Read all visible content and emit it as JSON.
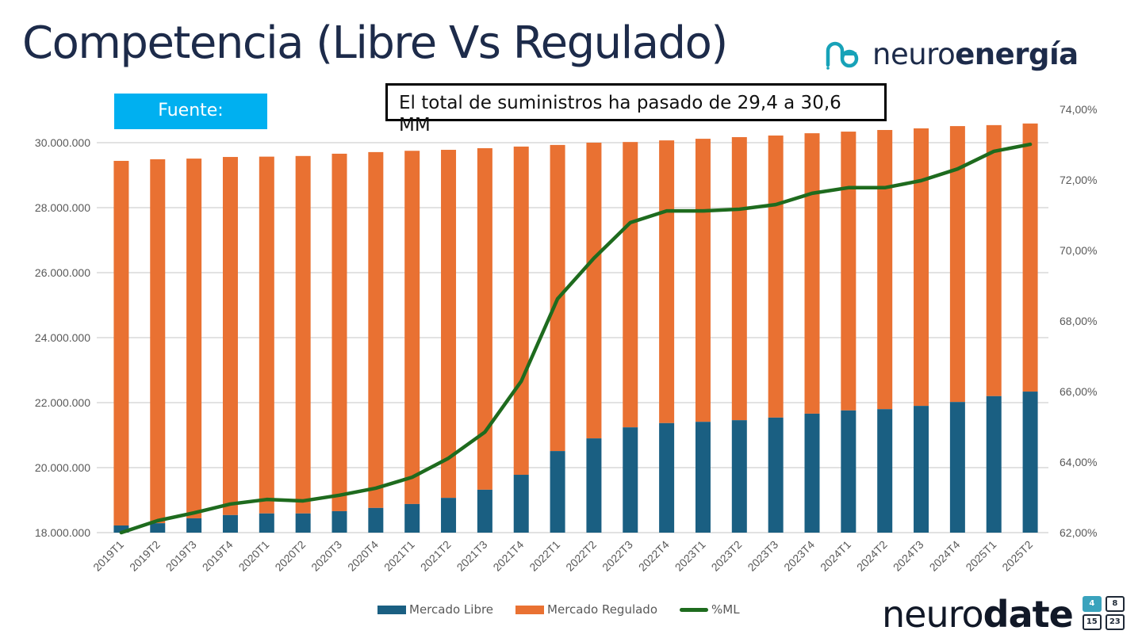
{
  "page": {
    "title": "Competencia (Libre Vs Regulado)",
    "source_label": "Fuente:",
    "note": "El total de suministros ha pasado de 29,4 a 30,6 MM",
    "brand_top": {
      "light": "neuro",
      "bold": "energía",
      "icon": "ne-logo-icon"
    },
    "brand_bottom": {
      "light": "neuro",
      "bold": "date",
      "calendar_days": [
        "4",
        "8",
        "15",
        "23"
      ],
      "icon": "calendar-icon"
    }
  },
  "colors": {
    "libre": "#1a5f82",
    "regulado": "#e97132",
    "pct_line": "#1e6b1e",
    "title": "#1d2b4a",
    "source_bg": "#00b0f0",
    "logo_teal": "#17a2b8",
    "grid": "#d9d9d9",
    "axis_text": "#595959"
  },
  "chart_data": {
    "type": "bar",
    "subtype": "stacked-bar-with-line-secondary-axis",
    "title": "Competencia (Libre Vs Regulado)",
    "xlabel": "",
    "ylabel": "",
    "y2label": "",
    "categories": [
      "2019T1",
      "2019T2",
      "2019T3",
      "2019T4",
      "2020T1",
      "2020T2",
      "2020T3",
      "2020T4",
      "2021T1",
      "2021T2",
      "2021T3",
      "2021T4",
      "2022T1",
      "2022T2",
      "2022T3",
      "2022T4",
      "2023T1",
      "2023T2",
      "2023T3",
      "2023T4",
      "2024T1",
      "2024T2",
      "2024T3",
      "2024T4",
      "2025T1",
      "2025T2"
    ],
    "series": [
      {
        "name": "Mercado Libre",
        "type": "bar",
        "axis": "left",
        "values": [
          18220000,
          18290000,
          18440000,
          18540000,
          18590000,
          18590000,
          18660000,
          18760000,
          18880000,
          19070000,
          19320000,
          19780000,
          20510000,
          20900000,
          21240000,
          21370000,
          21410000,
          21460000,
          21540000,
          21660000,
          21760000,
          21800000,
          21900000,
          22020000,
          22200000,
          22340000
        ]
      },
      {
        "name": "Mercado Regulado",
        "type": "bar",
        "axis": "left",
        "stacked_on": "Mercado Libre",
        "totals": [
          29440000,
          29490000,
          29510000,
          29560000,
          29570000,
          29590000,
          29660000,
          29710000,
          29750000,
          29780000,
          29830000,
          29880000,
          29930000,
          30000000,
          30020000,
          30070000,
          30120000,
          30170000,
          30220000,
          30290000,
          30340000,
          30390000,
          30440000,
          30510000,
          30540000,
          30590000
        ]
      },
      {
        "name": "%ML",
        "type": "line",
        "axis": "right",
        "values": [
          62.0,
          62.34,
          62.56,
          62.81,
          62.94,
          62.9,
          63.06,
          63.26,
          63.57,
          64.11,
          64.85,
          66.29,
          68.63,
          69.78,
          70.79,
          71.12,
          71.12,
          71.17,
          71.3,
          71.62,
          71.78,
          71.78,
          71.98,
          72.31,
          72.81,
          73.01
        ]
      }
    ],
    "ylim": [
      18000000,
      30000000
    ],
    "y2lim": [
      62,
      74
    ],
    "yticks": [
      "18.000.000",
      "20.000.000",
      "22.000.000",
      "24.000.000",
      "26.000.000",
      "28.000.000",
      "30.000.000"
    ],
    "y2ticks": [
      "62,00%",
      "64,00%",
      "66,00%",
      "68,00%",
      "70,00%",
      "72,00%",
      "74,00%"
    ],
    "grid": true,
    "legend": {
      "placement": "bottom",
      "entries": [
        "Mercado Libre",
        "Mercado Regulado",
        "%ML"
      ]
    }
  }
}
